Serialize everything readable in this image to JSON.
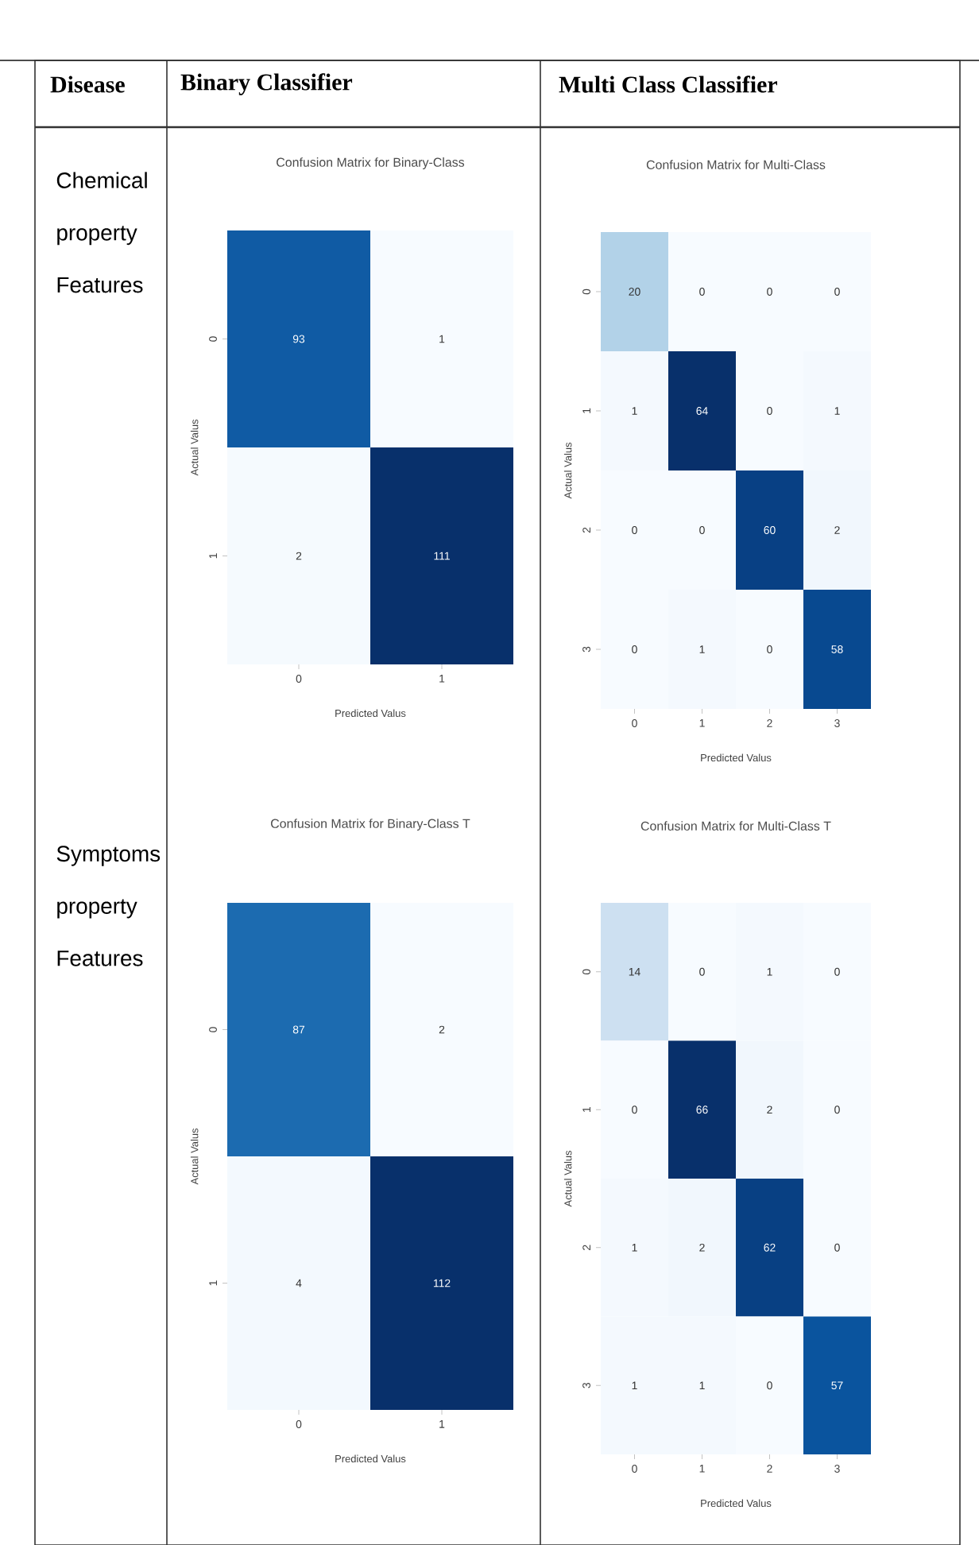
{
  "chart_data": [
    {
      "type": "other",
      "annotations": [
        "Disease",
        "Binary Classifier",
        "Multi Class Classifier",
        "Chemical property Features",
        "Symptoms property Features"
      ]
    },
    {
      "type": "heatmap",
      "title": "Confusion Matrix for Binary-Class",
      "xlabel": "Predicted Valus",
      "ylabel": "Actual Valus",
      "categories": [
        "0",
        "1"
      ],
      "y_categories": [
        "0",
        "1"
      ],
      "data_labels": true,
      "cells": [
        [
          93,
          1
        ],
        [
          2,
          111
        ]
      ]
    },
    {
      "type": "heatmap",
      "title": "Confusion Matrix for Multi-Class",
      "xlabel": "Predicted Valus",
      "ylabel": "Actual Valus",
      "categories": [
        "0",
        "1",
        "2",
        "3"
      ],
      "y_categories": [
        "0",
        "1",
        "2",
        "3"
      ],
      "data_labels": true,
      "cells": [
        [
          20,
          0,
          0,
          0
        ],
        [
          1,
          64,
          0,
          1
        ],
        [
          0,
          0,
          60,
          2
        ],
        [
          0,
          1,
          0,
          58
        ]
      ]
    },
    {
      "type": "heatmap",
      "title": "Confusion Matrix for Binary-Class T",
      "xlabel": "Predicted Valus",
      "ylabel": "Actual Valus",
      "categories": [
        "0",
        "1"
      ],
      "y_categories": [
        "0",
        "1"
      ],
      "data_labels": true,
      "cells": [
        [
          87,
          2
        ],
        [
          4,
          112
        ]
      ]
    },
    {
      "type": "heatmap",
      "title": "Confusion Matrix for Multi-Class T",
      "xlabel": "Predicted Valus",
      "ylabel": "Actual Valus",
      "categories": [
        "0",
        "1",
        "2",
        "3"
      ],
      "y_categories": [
        "0",
        "1",
        "2",
        "3"
      ],
      "data_labels": true,
      "cells": [
        [
          14,
          0,
          1,
          0
        ],
        [
          0,
          66,
          2,
          0
        ],
        [
          1,
          2,
          62,
          0
        ],
        [
          1,
          1,
          0,
          57
        ]
      ]
    }
  ]
}
